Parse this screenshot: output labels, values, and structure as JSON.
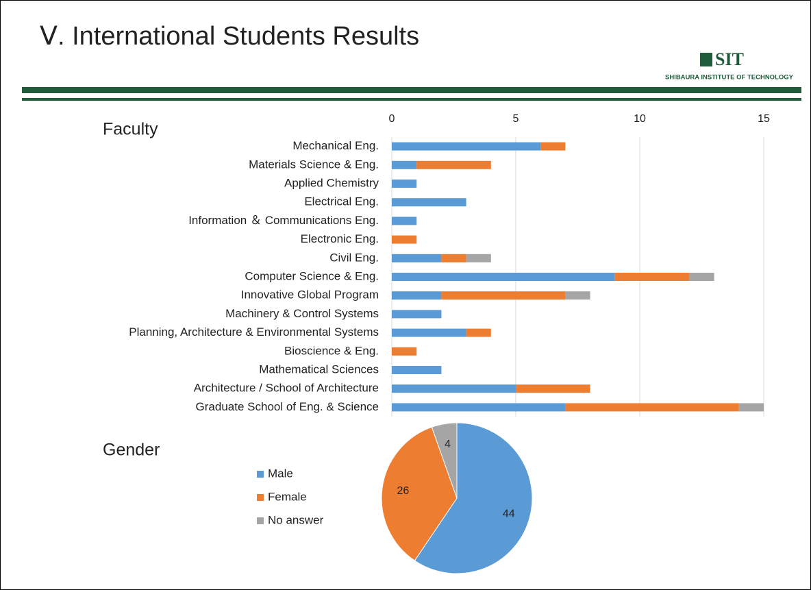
{
  "header": {
    "title": "Ⅴ. International Students Results",
    "logo": "SIT",
    "logo_caption": "SHIBAURA INSTITUTE OF TECHNOLOGY"
  },
  "chart_data": [
    {
      "type": "bar",
      "title": "Faculty",
      "horizontal": true,
      "stacked": true,
      "categories": [
        "Mechanical Eng.",
        "Materials Science & Eng.",
        "Applied Chemistry",
        "Electrical Eng.",
        "Information ＆ Communications Eng.",
        "Electronic Eng.",
        "Civil Eng.",
        "Computer Science & Eng.",
        "Innovative Global Program",
        "Machinery & Control Systems",
        "Planning, Architecture & Environmental Systems",
        "Bioscience & Eng.",
        "Mathematical Sciences",
        "Architecture / School of Architecture",
        "Graduate School of Eng. & Science"
      ],
      "series": [
        {
          "color": "#5b9bd5",
          "values": [
            6,
            1,
            1,
            3,
            1,
            0,
            2,
            9,
            2,
            2,
            3,
            0,
            2,
            5,
            7
          ]
        },
        {
          "color": "#ed7d31",
          "values": [
            1,
            3,
            0,
            0,
            0,
            1,
            1,
            3,
            5,
            0,
            1,
            1,
            0,
            3,
            7
          ]
        },
        {
          "color": "#a5a5a5",
          "values": [
            0,
            0,
            0,
            0,
            0,
            0,
            1,
            1,
            1,
            0,
            0,
            0,
            0,
            0,
            1
          ]
        }
      ],
      "xlim": [
        0,
        15
      ],
      "xticks": [
        0,
        5,
        10,
        15
      ],
      "grid": true
    },
    {
      "type": "pie",
      "title": "Gender",
      "categories": [
        "Male",
        "Female",
        "No answer"
      ],
      "values": [
        44,
        26,
        4
      ],
      "colors": [
        "#5b9bd5",
        "#ed7d31",
        "#a5a5a5"
      ]
    }
  ]
}
